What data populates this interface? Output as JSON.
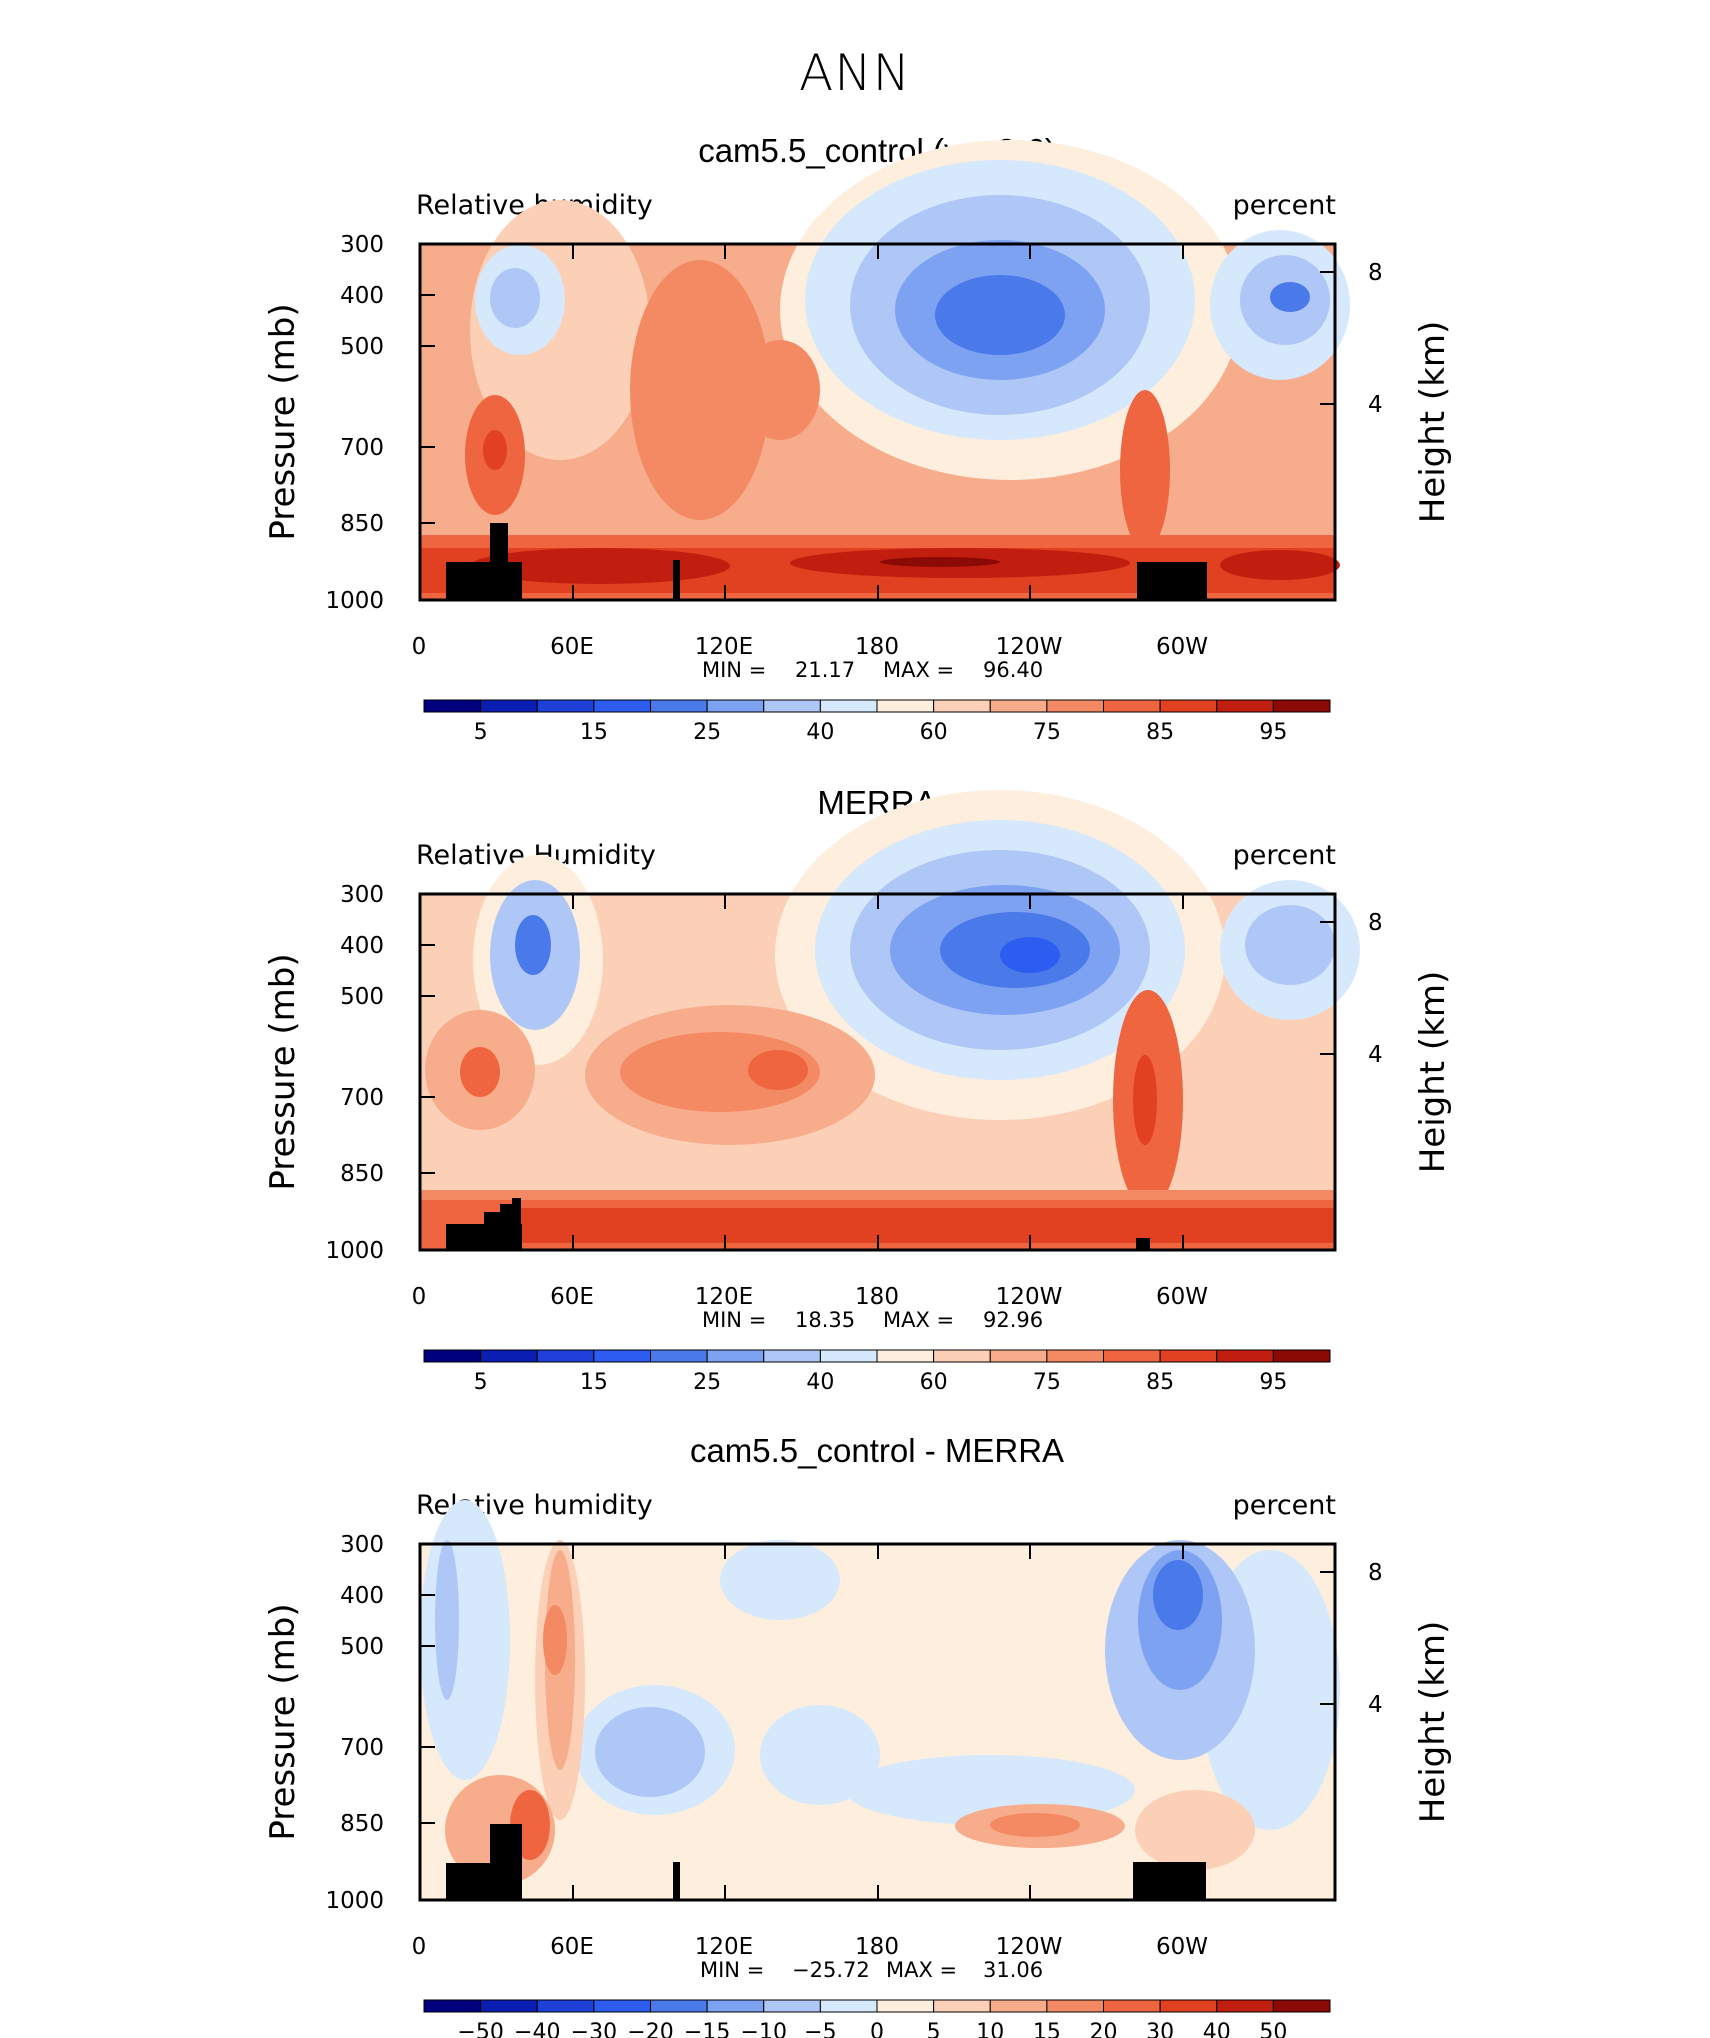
{
  "page": {
    "title": "ANN"
  },
  "colors": {
    "rh_scale": [
      "#00007f",
      "#0a1eb4",
      "#1e40d8",
      "#2d5cf0",
      "#4a7ae9",
      "#7ea2f2",
      "#aec7f7",
      "#d6e8fb",
      "#fdeedd",
      "#fbd0b6",
      "#f7ad8b",
      "#f38a63",
      "#ee6540",
      "#e14021",
      "#c21e0f",
      "#8c0a05"
    ],
    "diff_scale": [
      "#00007f",
      "#0a1eb4",
      "#1e40d8",
      "#2d5cf0",
      "#4a7ae9",
      "#7ea2f2",
      "#aec7f7",
      "#d6e8fb",
      "#fdeedd",
      "#fbd0b6",
      "#f7ad8b",
      "#f38a63",
      "#ee6540",
      "#e14021",
      "#c21e0f",
      "#8c0a05"
    ],
    "topography": "#000000"
  },
  "chart_data": [
    {
      "type": "heatmap",
      "title": "cam5.5_control (yrs 2-6)",
      "left_label": "Relative humidity",
      "right_label": "percent",
      "ylabel": "Pressure (mb)",
      "ylabel_right": "Height (km)",
      "x_ticks": [
        "0",
        "60E",
        "120E",
        "180",
        "120W",
        "60W"
      ],
      "y_ticks": [
        "300",
        "400",
        "500",
        "700",
        "850",
        "1000"
      ],
      "y_ticks_right": [
        "8",
        "4"
      ],
      "min_label": "MIN =",
      "min_value": "21.17",
      "max_label": "MAX =",
      "max_value": "96.40",
      "colorbar_labels": [
        "5",
        "15",
        "25",
        "40",
        "60",
        "75",
        "85",
        "95"
      ],
      "colorbar_levels": [
        0,
        5,
        10,
        15,
        20,
        25,
        30,
        40,
        50,
        60,
        70,
        75,
        80,
        85,
        90,
        95,
        100
      ],
      "ylim": [
        1000,
        300
      ],
      "xlim": [
        0,
        360
      ]
    },
    {
      "type": "heatmap",
      "title": "MERRA",
      "left_label": "Relative Humidity",
      "right_label": "percent",
      "ylabel": "Pressure (mb)",
      "ylabel_right": "Height (km)",
      "x_ticks": [
        "0",
        "60E",
        "120E",
        "180",
        "120W",
        "60W"
      ],
      "y_ticks": [
        "300",
        "400",
        "500",
        "700",
        "850",
        "1000"
      ],
      "y_ticks_right": [
        "8",
        "4"
      ],
      "min_label": "MIN =",
      "min_value": "18.35",
      "max_label": "MAX =",
      "max_value": "92.96",
      "colorbar_labels": [
        "5",
        "15",
        "25",
        "40",
        "60",
        "75",
        "85",
        "95"
      ],
      "colorbar_levels": [
        0,
        5,
        10,
        15,
        20,
        25,
        30,
        40,
        50,
        60,
        70,
        75,
        80,
        85,
        90,
        95,
        100
      ],
      "ylim": [
        1000,
        300
      ],
      "xlim": [
        0,
        360
      ]
    },
    {
      "type": "heatmap",
      "title": "cam5.5_control - MERRA",
      "left_label": "Relative humidity",
      "right_label": "percent",
      "ylabel": "Pressure (mb)",
      "ylabel_right": "Height (km)",
      "x_ticks": [
        "0",
        "60E",
        "120E",
        "180",
        "120W",
        "60W"
      ],
      "y_ticks": [
        "300",
        "400",
        "500",
        "700",
        "850",
        "1000"
      ],
      "y_ticks_right": [
        "8",
        "4"
      ],
      "min_label": "MIN =",
      "min_value": "−25.72",
      "max_label": "MAX =",
      "max_value": "31.06",
      "colorbar_labels": [
        "−50",
        "−40",
        "−30",
        "−20",
        "−15",
        "−10",
        "−5",
        "0",
        "5",
        "10",
        "15",
        "20",
        "30",
        "40",
        "50"
      ],
      "colorbar_levels": [
        -60,
        -50,
        -40,
        -30,
        -20,
        -15,
        -10,
        -5,
        0,
        5,
        10,
        15,
        20,
        30,
        40,
        50,
        60
      ],
      "ylim": [
        1000,
        300
      ],
      "xlim": [
        0,
        360
      ]
    }
  ]
}
